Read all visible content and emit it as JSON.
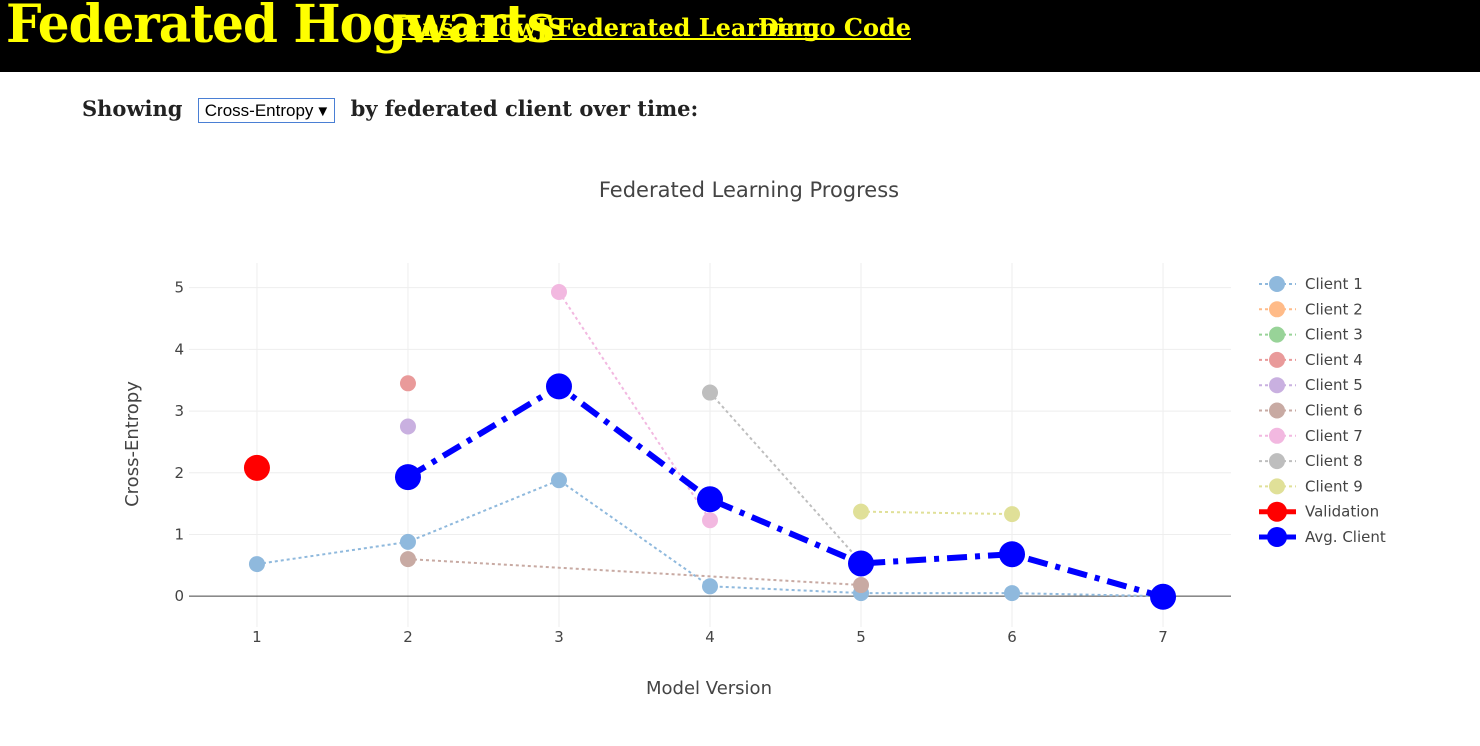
{
  "header": {
    "brand": "Federated Hogwarts",
    "nav": [
      "TensorflowJS",
      "Federated Learning",
      "Demo Code"
    ]
  },
  "controls": {
    "prefix": "Showing",
    "selected_metric": "Cross-Entropy",
    "suffix": "by federated client over time:"
  },
  "colors": {
    "topbar_bg": "#000000",
    "brand": "#ffff00",
    "validation": "#ff0000",
    "avg_client": "#0000ff"
  },
  "chart_data": {
    "type": "line",
    "title": "Federated Learning Progress",
    "xlabel": "Model Version",
    "ylabel": "Cross-Entropy",
    "xlim": [
      0.55,
      7.45
    ],
    "ylim": [
      -0.5,
      5.4
    ],
    "x_ticks": [
      1,
      2,
      3,
      4,
      5,
      6,
      7
    ],
    "y_ticks": [
      0,
      1,
      2,
      3,
      4,
      5
    ],
    "grid": true,
    "legend_position": "right",
    "series": [
      {
        "name": "Client 1",
        "color": "#8fb9dd",
        "style": "dotted",
        "points": [
          [
            1,
            0.52
          ],
          [
            2,
            0.88
          ],
          [
            3,
            1.88
          ],
          [
            4,
            0.16
          ],
          [
            5,
            0.05
          ],
          [
            6,
            0.05
          ],
          [
            7,
            0.0
          ]
        ]
      },
      {
        "name": "Client 2",
        "color": "#ffbb88",
        "style": "dotted",
        "points": []
      },
      {
        "name": "Client 3",
        "color": "#98d398",
        "style": "dotted",
        "points": []
      },
      {
        "name": "Client 4",
        "color": "#e99a9a",
        "style": "dotted",
        "points": [
          [
            2,
            3.45
          ]
        ]
      },
      {
        "name": "Client 5",
        "color": "#c9b0e0",
        "style": "dotted",
        "points": [
          [
            2,
            2.75
          ]
        ]
      },
      {
        "name": "Client 6",
        "color": "#c8aaa3",
        "style": "dotted",
        "points": [
          [
            2,
            0.6
          ],
          [
            5,
            0.18
          ]
        ]
      },
      {
        "name": "Client 7",
        "color": "#f2b8e0",
        "style": "dotted",
        "points": [
          [
            3,
            4.93
          ],
          [
            4,
            1.23
          ]
        ]
      },
      {
        "name": "Client 8",
        "color": "#bebebe",
        "style": "dotted",
        "points": [
          [
            4,
            3.3
          ],
          [
            5,
            0.55
          ]
        ]
      },
      {
        "name": "Client 9",
        "color": "#e0e098",
        "style": "dotted",
        "points": [
          [
            5,
            1.37
          ],
          [
            6,
            1.33
          ]
        ]
      },
      {
        "name": "Validation",
        "color": "#ff0000",
        "style": "solid",
        "points": [
          [
            1,
            2.08
          ]
        ]
      },
      {
        "name": "Avg. Client",
        "color": "#0000ff",
        "style": "dashdot",
        "points": [
          [
            2,
            1.93
          ],
          [
            3,
            3.4
          ],
          [
            4,
            1.57
          ],
          [
            5,
            0.53
          ],
          [
            6,
            0.68
          ],
          [
            7,
            -0.01
          ]
        ]
      }
    ]
  }
}
